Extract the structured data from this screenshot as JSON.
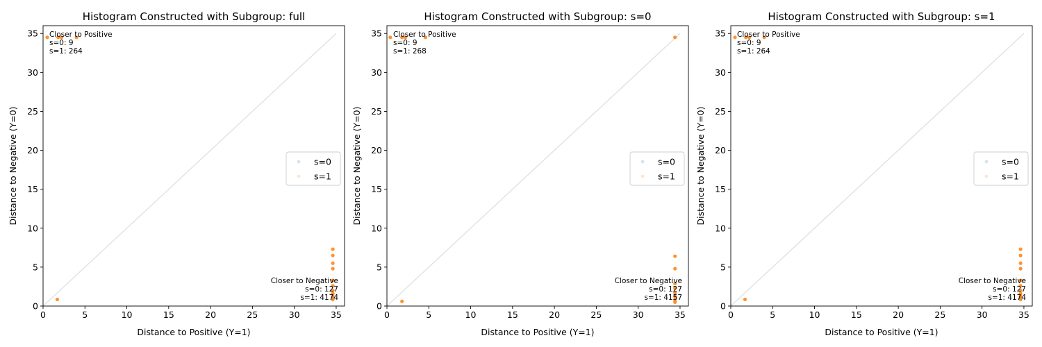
{
  "chart_data": [
    {
      "type": "scatter",
      "title": "Histogram Constructed with Subgroup: full",
      "xlabel": "Distance to Positive (Y=1)",
      "ylabel": "Distance to Negative (Y=0)",
      "xlim": [
        0,
        36
      ],
      "ylim": [
        0,
        36
      ],
      "xticks": [
        0,
        5,
        10,
        15,
        20,
        25,
        30,
        35
      ],
      "yticks": [
        0,
        5,
        10,
        15,
        20,
        25,
        30,
        35
      ],
      "diagonal": [
        [
          0,
          0
        ],
        [
          35,
          35
        ]
      ],
      "legend": {
        "position": "center-right",
        "entries": [
          "s=0",
          "s=1"
        ]
      },
      "annotations": {
        "positive": [
          "Closer to Positive",
          "s=0: 9",
          "s=1: 264"
        ],
        "negative": [
          "Closer to Negative",
          "s=0: 127",
          "s=1: 4174"
        ]
      },
      "series": [
        {
          "name": "s=0",
          "color": "#1f77b4",
          "points": [
            [
              34.6,
              0.8
            ],
            [
              34.6,
              1.3
            ]
          ]
        },
        {
          "name": "s=1",
          "color": "#ff7f0e",
          "points": [
            [
              0.5,
              34.5
            ],
            [
              1.8,
              34.5
            ],
            [
              2.2,
              34.5
            ],
            [
              4.0,
              34.5
            ],
            [
              1.7,
              0.85
            ],
            [
              34.6,
              7.3
            ],
            [
              34.6,
              6.5
            ],
            [
              34.6,
              5.5
            ],
            [
              34.6,
              4.8
            ],
            [
              34.6,
              3.3
            ],
            [
              34.6,
              2.6
            ],
            [
              34.6,
              2.0
            ],
            [
              34.6,
              1.6
            ],
            [
              34.6,
              1.2
            ],
            [
              34.6,
              0.9
            ]
          ]
        }
      ]
    },
    {
      "type": "scatter",
      "title": "Histogram Constructed with Subgroup: s=0",
      "xlabel": "Distance to Positive (Y=1)",
      "ylabel": "Distance to Negative (Y=0)",
      "xlim": [
        0,
        36
      ],
      "ylim": [
        0,
        36
      ],
      "xticks": [
        0,
        5,
        10,
        15,
        20,
        25,
        30,
        35
      ],
      "yticks": [
        0,
        5,
        10,
        15,
        20,
        25,
        30,
        35
      ],
      "diagonal": [
        [
          0,
          0
        ],
        [
          35,
          35
        ]
      ],
      "legend": {
        "position": "center-right",
        "entries": [
          "s=0",
          "s=1"
        ]
      },
      "annotations": {
        "positive": [
          "Closer to Positive",
          "s=0: 9",
          "s=1: 268"
        ],
        "negative": [
          "Closer to Negative",
          "s=0: 127",
          "s=1: 4157"
        ]
      },
      "series": [
        {
          "name": "s=0",
          "color": "#1f77b4",
          "points": [
            [
              34.4,
              0.8
            ],
            [
              34.4,
              1.4
            ]
          ]
        },
        {
          "name": "s=1",
          "color": "#ff7f0e",
          "points": [
            [
              0.4,
              34.5
            ],
            [
              1.8,
              34.5
            ],
            [
              2.2,
              34.5
            ],
            [
              4.6,
              34.5
            ],
            [
              34.4,
              34.5
            ],
            [
              1.8,
              0.6
            ],
            [
              34.4,
              6.4
            ],
            [
              34.4,
              4.8
            ],
            [
              34.4,
              2.9
            ],
            [
              34.4,
              2.3
            ],
            [
              34.4,
              1.7
            ],
            [
              34.4,
              1.2
            ],
            [
              34.4,
              0.8
            ],
            [
              34.4,
              0.5
            ]
          ]
        }
      ]
    },
    {
      "type": "scatter",
      "title": "Histogram Constructed with Subgroup: s=1",
      "xlabel": "Distance to Positive (Y=1)",
      "ylabel": "Distance to Negative (Y=0)",
      "xlim": [
        0,
        36
      ],
      "ylim": [
        0,
        36
      ],
      "xticks": [
        0,
        5,
        10,
        15,
        20,
        25,
        30,
        35
      ],
      "yticks": [
        0,
        5,
        10,
        15,
        20,
        25,
        30,
        35
      ],
      "diagonal": [
        [
          0,
          0
        ],
        [
          35,
          35
        ]
      ],
      "legend": {
        "position": "center-right",
        "entries": [
          "s=0",
          "s=1"
        ]
      },
      "annotations": {
        "positive": [
          "Closer to Positive",
          "s=0: 9",
          "s=1: 264"
        ],
        "negative": [
          "Closer to Negative",
          "s=0: 127",
          "s=1: 4174"
        ]
      },
      "series": [
        {
          "name": "s=0",
          "color": "#1f77b4",
          "points": [
            [
              34.6,
              0.8
            ],
            [
              34.6,
              1.3
            ]
          ]
        },
        {
          "name": "s=1",
          "color": "#ff7f0e",
          "points": [
            [
              0.5,
              34.5
            ],
            [
              1.8,
              34.5
            ],
            [
              2.2,
              34.5
            ],
            [
              4.0,
              34.5
            ],
            [
              1.7,
              0.85
            ],
            [
              34.6,
              7.3
            ],
            [
              34.6,
              6.5
            ],
            [
              34.6,
              5.5
            ],
            [
              34.6,
              4.8
            ],
            [
              34.6,
              3.3
            ],
            [
              34.6,
              2.6
            ],
            [
              34.6,
              2.0
            ],
            [
              34.6,
              1.6
            ],
            [
              34.6,
              1.2
            ],
            [
              34.6,
              0.9
            ]
          ]
        }
      ]
    }
  ]
}
